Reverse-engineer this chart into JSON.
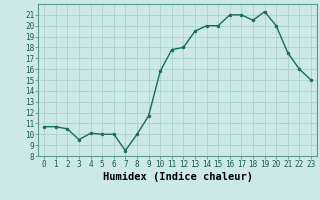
{
  "x": [
    0,
    1,
    2,
    3,
    4,
    5,
    6,
    7,
    8,
    9,
    10,
    11,
    12,
    13,
    14,
    15,
    16,
    17,
    18,
    19,
    20,
    21,
    22,
    23
  ],
  "y": [
    10.7,
    10.7,
    10.5,
    9.5,
    10.1,
    10.0,
    10.0,
    8.5,
    10.0,
    11.7,
    15.8,
    17.8,
    18.0,
    19.5,
    20.0,
    20.0,
    21.0,
    21.0,
    20.5,
    21.3,
    20.0,
    17.5,
    16.0,
    15.0
  ],
  "line_color": "#1a6b5a",
  "marker": "o",
  "markersize": 2,
  "linewidth": 1.0,
  "xlabel": "Humidex (Indice chaleur)",
  "bg_color": "#cce9e7",
  "grid_color": "#aad0cc",
  "xlim": [
    -0.5,
    23.5
  ],
  "ylim": [
    8,
    22
  ],
  "yticks": [
    8,
    9,
    10,
    11,
    12,
    13,
    14,
    15,
    16,
    17,
    18,
    19,
    20,
    21
  ],
  "xticks": [
    0,
    1,
    2,
    3,
    4,
    5,
    6,
    7,
    8,
    9,
    10,
    11,
    12,
    13,
    14,
    15,
    16,
    17,
    18,
    19,
    20,
    21,
    22,
    23
  ],
  "tick_label_size": 5.5,
  "xlabel_size": 7.5
}
